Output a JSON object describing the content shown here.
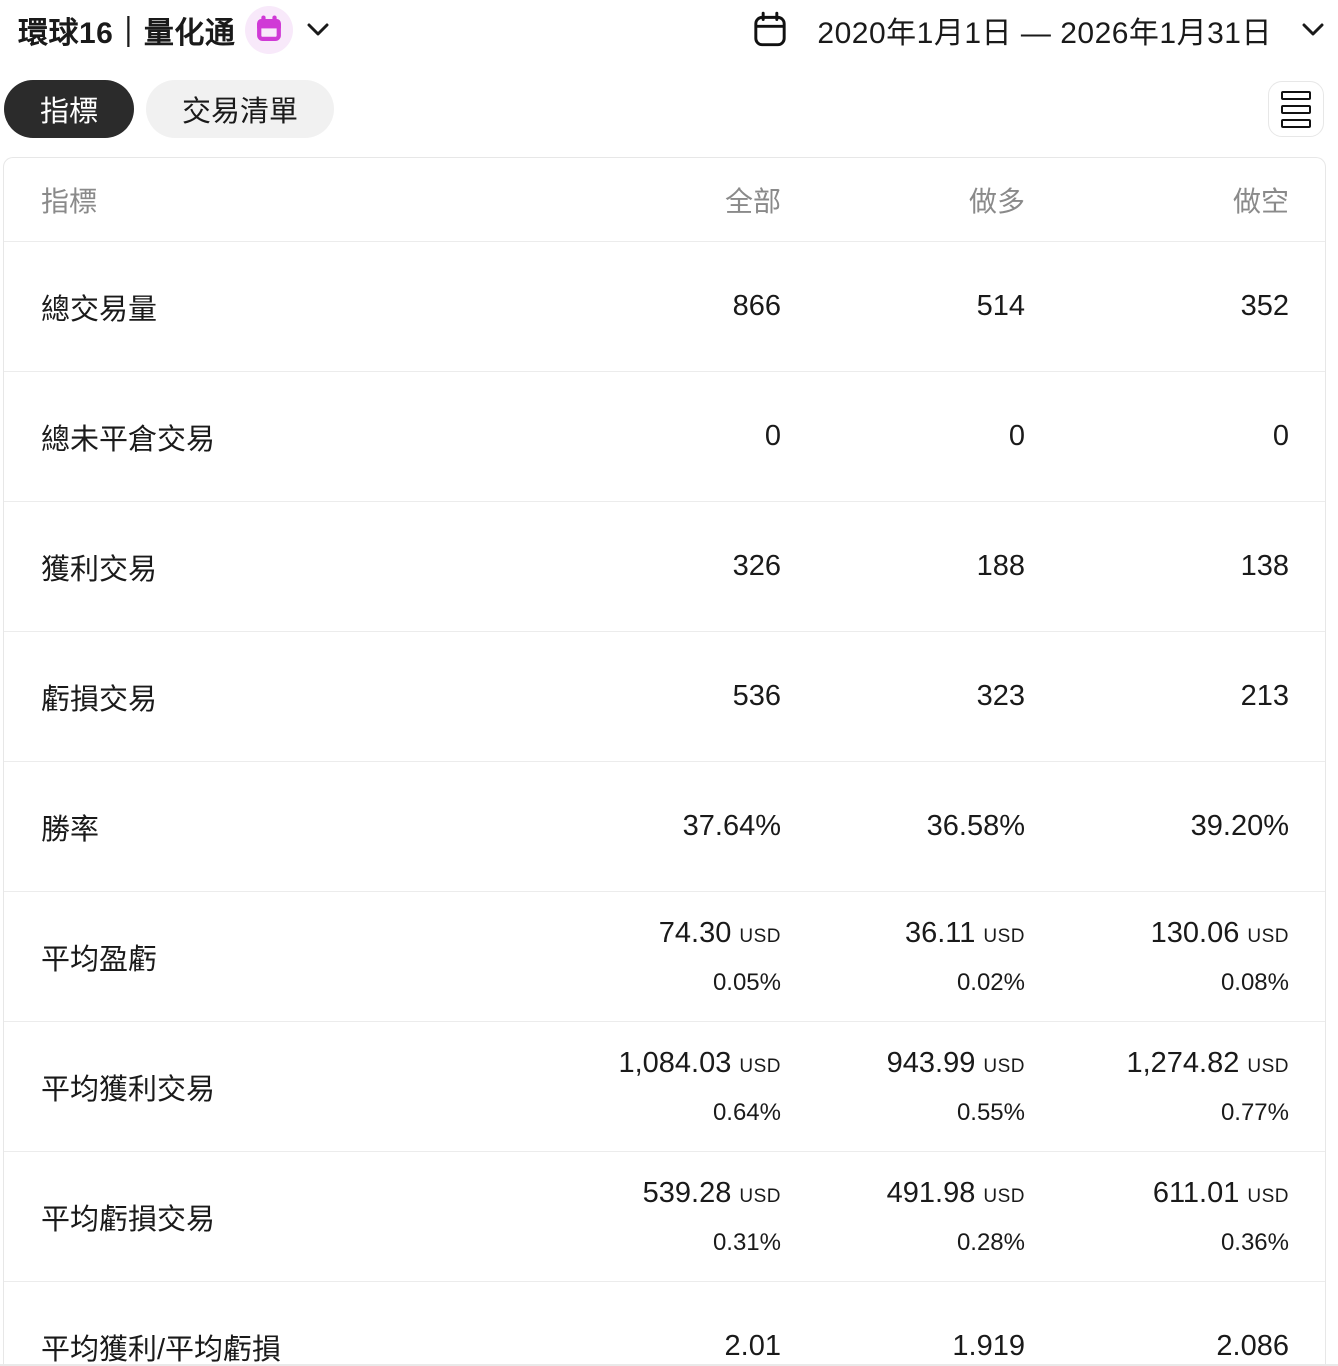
{
  "header": {
    "title": "環球16｜量化通",
    "date_range": "2020年1月1日 — 2026年1月31日"
  },
  "tabs": [
    {
      "label": "指標",
      "active": true
    },
    {
      "label": "交易清單",
      "active": false
    }
  ],
  "table": {
    "columns": [
      "指標",
      "全部",
      "做多",
      "做空"
    ],
    "rows": [
      {
        "label": "總交易量",
        "all": "866",
        "long": "514",
        "short": "352"
      },
      {
        "label": "總未平倉交易",
        "all": "0",
        "long": "0",
        "short": "0"
      },
      {
        "label": "獲利交易",
        "all": "326",
        "long": "188",
        "short": "138"
      },
      {
        "label": "虧損交易",
        "all": "536",
        "long": "323",
        "short": "213"
      },
      {
        "label": "勝率",
        "all": "37.64%",
        "long": "36.58%",
        "short": "39.20%"
      },
      {
        "label": "平均盈虧",
        "all": {
          "value": "74.30",
          "currency": "USD",
          "percent": "0.05%"
        },
        "long": {
          "value": "36.11",
          "currency": "USD",
          "percent": "0.02%"
        },
        "short": {
          "value": "130.06",
          "currency": "USD",
          "percent": "0.08%"
        }
      },
      {
        "label": "平均獲利交易",
        "all": {
          "value": "1,084.03",
          "currency": "USD",
          "percent": "0.64%"
        },
        "long": {
          "value": "943.99",
          "currency": "USD",
          "percent": "0.55%"
        },
        "short": {
          "value": "1,274.82",
          "currency": "USD",
          "percent": "0.77%"
        }
      },
      {
        "label": "平均虧損交易",
        "all": {
          "value": "539.28",
          "currency": "USD",
          "percent": "0.31%"
        },
        "long": {
          "value": "491.98",
          "currency": "USD",
          "percent": "0.28%"
        },
        "short": {
          "value": "611.01",
          "currency": "USD",
          "percent": "0.36%"
        }
      },
      {
        "label": "平均獲利/平均虧損",
        "all": "2.01",
        "long": "1.919",
        "short": "2.086"
      }
    ]
  },
  "colors": {
    "accent_magenta": "#d03ad6",
    "accent_magenta_bg": "#f8e9fa",
    "active_tab_bg": "#2b2b2b",
    "inactive_tab_bg": "#f1f1f1",
    "header_text": "#8a8a8a",
    "divider": "#ececec",
    "text": "#1a1a1a"
  }
}
